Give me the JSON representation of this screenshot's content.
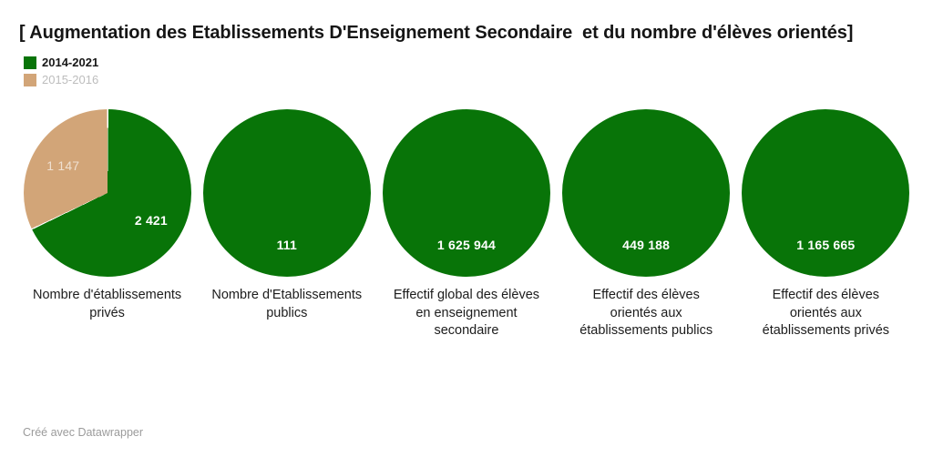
{
  "chart_data": {
    "type": "pie",
    "title": "[ Augmentation des Etablissements D'Enseignement Secondaire  et du nombre d'élèves orientés]",
    "legend": [
      {
        "label": "2014-2021",
        "color": "#087408",
        "active": true
      },
      {
        "label": "2015-2016",
        "color": "#d2a578",
        "active": false
      }
    ],
    "legend_position": "top-left",
    "pies": [
      {
        "label": "Nombre d'établissements\nprivés",
        "slices": [
          {
            "series": "2014-2021",
            "value": 2421,
            "display": "2 421"
          },
          {
            "series": "2015-2016",
            "value": 1147,
            "display": "1 147"
          }
        ]
      },
      {
        "label": "Nombre d'Etablissements\npublics",
        "slices": [
          {
            "series": "2014-2021",
            "value": 111,
            "display": "111"
          }
        ]
      },
      {
        "label": "Effectif global des élèves\nen enseignement\nsecondaire",
        "slices": [
          {
            "series": "2014-2021",
            "value": 1625944,
            "display": "1 625 944"
          }
        ]
      },
      {
        "label": "Effectif des élèves\norientés aux\nétablissements publics",
        "slices": [
          {
            "series": "2014-2021",
            "value": 449188,
            "display": "449 188"
          }
        ]
      },
      {
        "label": "Effectif des élèves\norientés aux\nétablissements privés",
        "slices": [
          {
            "series": "2014-2021",
            "value": 1165665,
            "display": "1 165 665"
          }
        ]
      }
    ],
    "footer": "Créé avec Datawrapper"
  }
}
